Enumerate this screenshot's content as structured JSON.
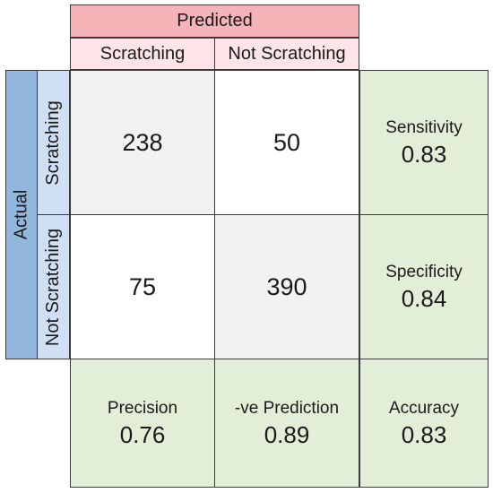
{
  "header": {
    "predicted": "Predicted",
    "actual": "Actual",
    "pred_cols": [
      "Scratching",
      "Not Scratching"
    ],
    "actual_rows": [
      "Scratching",
      "Not Scratching"
    ]
  },
  "matrix": {
    "tp": "238",
    "fn": "50",
    "fp": "75",
    "tn": "390"
  },
  "metrics": {
    "sensitivity": {
      "label": "Sensitivity",
      "value": "0.83"
    },
    "specificity": {
      "label": "Specificity",
      "value": "0.84"
    },
    "precision": {
      "label": "Precision",
      "value": "0.76"
    },
    "neg_prediction": {
      "label": "-ve Prediction",
      "value": "0.89"
    },
    "accuracy": {
      "label": "Accuracy",
      "value": "0.83"
    }
  },
  "colors": {
    "predicted_header": "#f5b5b8",
    "predicted_sub": "#fde4e6",
    "actual_header": "#93b6df",
    "actual_sub": "#cfe0f5",
    "metric_bg": "#e3eed8",
    "diag_bg": "#f2f2f2"
  }
}
